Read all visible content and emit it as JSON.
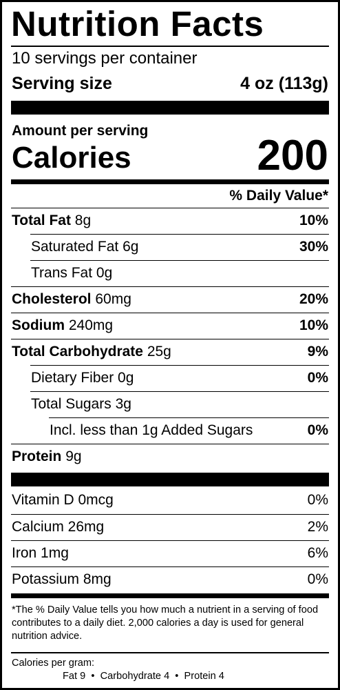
{
  "title": "Nutrition Facts",
  "servings_per_container": "10 servings per container",
  "serving_size": {
    "label": "Serving size",
    "value": "4 oz (113g)"
  },
  "amount_per_serving": "Amount per serving",
  "calories": {
    "label": "Calories",
    "value": "200"
  },
  "daily_value_header": "% Daily Value*",
  "nutrients": [
    {
      "name": "Total Fat",
      "amount": "8g",
      "dv": "10%"
    },
    {
      "name": "Saturated Fat",
      "amount": "6g",
      "dv": "30%"
    },
    {
      "name": "Trans Fat",
      "amount": "0g",
      "dv": ""
    },
    {
      "name": "Cholesterol",
      "amount": "60mg",
      "dv": "20%"
    },
    {
      "name": "Sodium",
      "amount": "240mg",
      "dv": "10%"
    },
    {
      "name": "Total Carbohydrate",
      "amount": "25g",
      "dv": "9%"
    },
    {
      "name": "Dietary Fiber",
      "amount": "0g",
      "dv": "0%"
    },
    {
      "name": "Total Sugars",
      "amount": "3g",
      "dv": ""
    },
    {
      "name": "Incl. less than 1g Added Sugars",
      "amount": "",
      "dv": "0%"
    },
    {
      "name": "Protein",
      "amount": "9g",
      "dv": ""
    }
  ],
  "vitamins": [
    {
      "label": "Vitamin D 0mcg",
      "dv": "0%"
    },
    {
      "label": "Calcium 26mg",
      "dv": "2%"
    },
    {
      "label": "Iron 1mg",
      "dv": "6%"
    },
    {
      "label": "Potassium 8mg",
      "dv": "0%"
    }
  ],
  "footnote": "*The % Daily Value tells you how much a nutrient in a serving of food contributes to a daily diet. 2,000 calories a day is used for general nutrition advice.",
  "calories_per_gram": {
    "label": "Calories per gram:",
    "values": "Fat 9  •  Carbohydrate 4  •  Protein 4"
  }
}
